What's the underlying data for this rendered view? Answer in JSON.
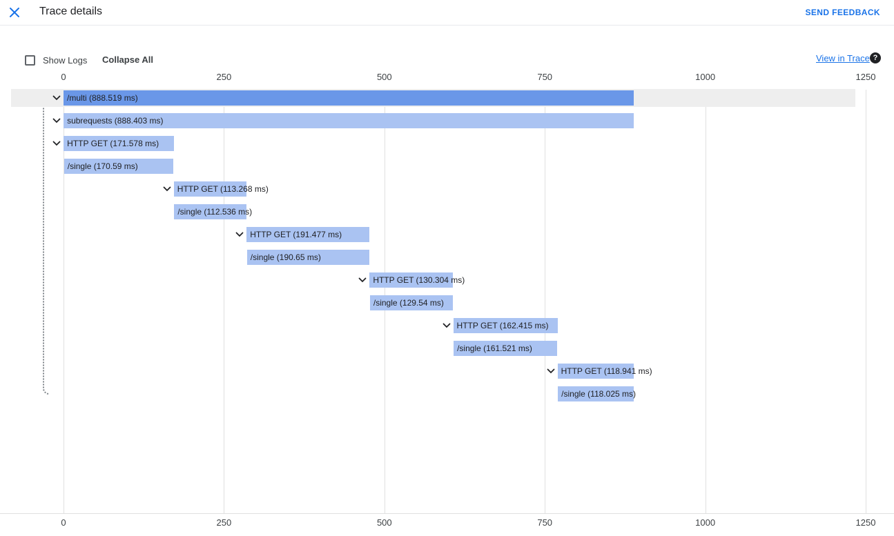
{
  "header": {
    "title": "Trace details",
    "send_feedback_label": "SEND FEEDBACK"
  },
  "toolbar": {
    "show_logs_label": "Show Logs",
    "collapse_all_label": "Collapse All",
    "view_in_trace_label": "View in Trace",
    "help_icon_glyph": "?"
  },
  "colors": {
    "accent": "#1a73e8",
    "bar_selected": "#6a97e8",
    "bar_default": "#aac3f2",
    "row_highlight": "#eeeeee",
    "gridline": "#e0e0e0",
    "bar_text": "#202124"
  },
  "chart_data": {
    "type": "gantt",
    "title": "Trace details waterfall",
    "unit": "ms",
    "axis_ticks": [
      0,
      250,
      500,
      750,
      1000,
      1250
    ],
    "axis_range": [
      0,
      1250
    ],
    "spans": [
      {
        "label": "/multi (888.519 ms)",
        "name": "/multi",
        "start_ms": 0,
        "duration_ms": 888.519,
        "expandable": true,
        "selected": true
      },
      {
        "label": "subrequests (888.403 ms)",
        "name": "subrequests",
        "start_ms": 0.1,
        "duration_ms": 888.403,
        "expandable": true,
        "selected": false
      },
      {
        "label": "HTTP GET (171.578 ms)",
        "name": "HTTP GET",
        "start_ms": 0.2,
        "duration_ms": 171.578,
        "expandable": true,
        "selected": false
      },
      {
        "label": "/single (170.59 ms)",
        "name": "/single",
        "start_ms": 0.8,
        "duration_ms": 170.59,
        "expandable": false,
        "selected": false
      },
      {
        "label": "HTTP GET (113.268 ms)",
        "name": "HTTP GET",
        "start_ms": 171.9,
        "duration_ms": 113.268,
        "expandable": true,
        "selected": false
      },
      {
        "label": "/single (112.536 ms)",
        "name": "/single",
        "start_ms": 172.5,
        "duration_ms": 112.536,
        "expandable": false,
        "selected": false
      },
      {
        "label": "HTTP GET (191.477 ms)",
        "name": "HTTP GET",
        "start_ms": 285.3,
        "duration_ms": 191.477,
        "expandable": true,
        "selected": false
      },
      {
        "label": "/single (190.65 ms)",
        "name": "/single",
        "start_ms": 285.9,
        "duration_ms": 190.65,
        "expandable": false,
        "selected": false
      },
      {
        "label": "HTTP GET (130.304 ms)",
        "name": "HTTP GET",
        "start_ms": 476.9,
        "duration_ms": 130.304,
        "expandable": true,
        "selected": false
      },
      {
        "label": "/single (129.54 ms)",
        "name": "/single",
        "start_ms": 477.5,
        "duration_ms": 129.54,
        "expandable": false,
        "selected": false
      },
      {
        "label": "HTTP GET (162.415 ms)",
        "name": "HTTP GET",
        "start_ms": 607.3,
        "duration_ms": 162.415,
        "expandable": true,
        "selected": false
      },
      {
        "label": "/single (161.521 ms)",
        "name": "/single",
        "start_ms": 607.9,
        "duration_ms": 161.521,
        "expandable": false,
        "selected": false
      },
      {
        "label": "HTTP GET (118.941 ms)",
        "name": "HTTP GET",
        "start_ms": 769.8,
        "duration_ms": 118.941,
        "expandable": true,
        "selected": false
      },
      {
        "label": "/single (118.025 ms)",
        "name": "/single",
        "start_ms": 770.4,
        "duration_ms": 118.025,
        "expandable": false,
        "selected": false
      }
    ]
  }
}
